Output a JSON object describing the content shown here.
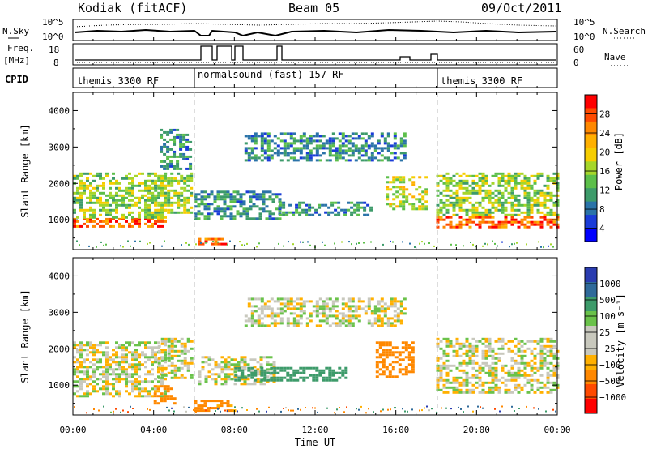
{
  "header": {
    "radar": "Kodiak (fitACF)",
    "beam": "Beam 05",
    "date": "09/Oct/2011"
  },
  "panels": {
    "nsky": {
      "label": "N.Sky",
      "right_label": "N.Search",
      "ticks_left": [
        "10^5",
        "10^0"
      ],
      "ticks_right": [
        "10^5",
        "10^0"
      ]
    },
    "freq": {
      "label_line1": "Freq.",
      "label_line2": "[MHz]",
      "right_label": "Nave",
      "ticks_left": [
        "18",
        "8"
      ],
      "ticks_right": [
        "60",
        "0"
      ]
    },
    "cpid": {
      "label": "CPID",
      "segments": [
        "themis 3300 RF",
        "normalsound (fast) 157 RF",
        "themis 3300 RF"
      ]
    }
  },
  "chart_data": [
    {
      "type": "heatmap",
      "title": "",
      "xlabel": "Time UT",
      "ylabel": "Slant Range [km]",
      "xlim": [
        "00:00",
        "24:00"
      ],
      "ylim": [
        180,
        4500
      ],
      "y_ticks": [
        "4000",
        "3000",
        "2000",
        "1000"
      ],
      "x_ticks": [
        "00:00",
        "04:00",
        "08:00",
        "12:00",
        "16:00",
        "20:00",
        "00:00"
      ],
      "colorbar": {
        "label": "Power [dB]",
        "ticks": [
          "28",
          "24",
          "20",
          "16",
          "12",
          "8",
          "4"
        ],
        "colors": [
          "#ff0000",
          "#ff4a00",
          "#ff8800",
          "#ffb000",
          "#f6cd00",
          "#a6d62a",
          "#5cbf4a",
          "#3d9b6a",
          "#2a73a8",
          "#1a3cd8",
          "#0000ff"
        ]
      },
      "bands": [
        {
          "start": 0,
          "end": 4.5,
          "range_lo": 800,
          "range_hi": 1050,
          "power_db": 26
        },
        {
          "start": 0,
          "end": 4.5,
          "range_lo": 1050,
          "range_hi": 2300,
          "power_db": 14
        },
        {
          "start": 3.7,
          "end": 5.9,
          "range_lo": 1200,
          "range_hi": 2300,
          "power_db": 14
        },
        {
          "start": 4.3,
          "end": 5.9,
          "range_lo": 2400,
          "range_hi": 3500,
          "power_db": 8
        },
        {
          "start": 6.0,
          "end": 10.2,
          "range_lo": 1000,
          "range_hi": 1800,
          "power_db": 8
        },
        {
          "start": 10.2,
          "end": 14.8,
          "range_lo": 1100,
          "range_hi": 1500,
          "power_db": 8
        },
        {
          "start": 8.5,
          "end": 16.5,
          "range_lo": 2600,
          "range_hi": 3400,
          "power_db": 8
        },
        {
          "start": 6.2,
          "end": 7.6,
          "range_lo": 300,
          "range_hi": 500,
          "power_db": 26
        },
        {
          "start": 15.5,
          "end": 17.5,
          "range_lo": 1300,
          "range_hi": 2200,
          "power_db": 16
        },
        {
          "start": 18.0,
          "end": 24.0,
          "range_lo": 800,
          "range_hi": 1100,
          "power_db": 26
        },
        {
          "start": 18.0,
          "end": 24.0,
          "range_lo": 1100,
          "range_hi": 2300,
          "power_db": 14
        }
      ]
    },
    {
      "type": "heatmap",
      "title": "",
      "xlabel": "Time UT",
      "ylabel": "Slant Range [km]",
      "xlim": [
        "00:00",
        "24:00"
      ],
      "ylim": [
        180,
        4500
      ],
      "y_ticks": [
        "4000",
        "3000",
        "2000",
        "1000"
      ],
      "x_ticks": [
        "00:00",
        "04:00",
        "08:00",
        "12:00",
        "16:00",
        "20:00",
        "00:00"
      ],
      "colorbar": {
        "label": "Velocity [m s⁻¹]",
        "ticks": [
          "1000",
          "500",
          "100",
          "25",
          "−25",
          "−100",
          "−500",
          "−1000"
        ],
        "colors": [
          "#2a3cb0",
          "#2f6a9a",
          "#3d9b6a",
          "#6ac24a",
          "#c8c8bd",
          "#c8c8bd",
          "#ffb000",
          "#ff8800",
          "#ff4a00",
          "#ff0000"
        ]
      },
      "bands": [
        {
          "start": 0,
          "end": 4.5,
          "range_lo": 700,
          "range_hi": 2200,
          "velocity_ms": 0
        },
        {
          "start": 4.2,
          "end": 5.9,
          "range_lo": 1200,
          "range_hi": 2300,
          "velocity_ms": 0
        },
        {
          "start": 4.0,
          "end": 5.0,
          "range_lo": 500,
          "range_hi": 1000,
          "velocity_ms": -400
        },
        {
          "start": 6.2,
          "end": 10.0,
          "range_lo": 1000,
          "range_hi": 1800,
          "velocity_ms": 0
        },
        {
          "start": 8.0,
          "end": 13.5,
          "range_lo": 1100,
          "range_hi": 1500,
          "velocity_ms": 150
        },
        {
          "start": 8.5,
          "end": 16.5,
          "range_lo": 2600,
          "range_hi": 3400,
          "velocity_ms": 0
        },
        {
          "start": 15.0,
          "end": 16.8,
          "range_lo": 1200,
          "range_hi": 2200,
          "velocity_ms": -400
        },
        {
          "start": 6.0,
          "end": 8.0,
          "range_lo": 300,
          "range_hi": 600,
          "velocity_ms": -150
        },
        {
          "start": 18.0,
          "end": 24.0,
          "range_lo": 800,
          "range_hi": 2300,
          "velocity_ms": 0
        }
      ]
    }
  ]
}
